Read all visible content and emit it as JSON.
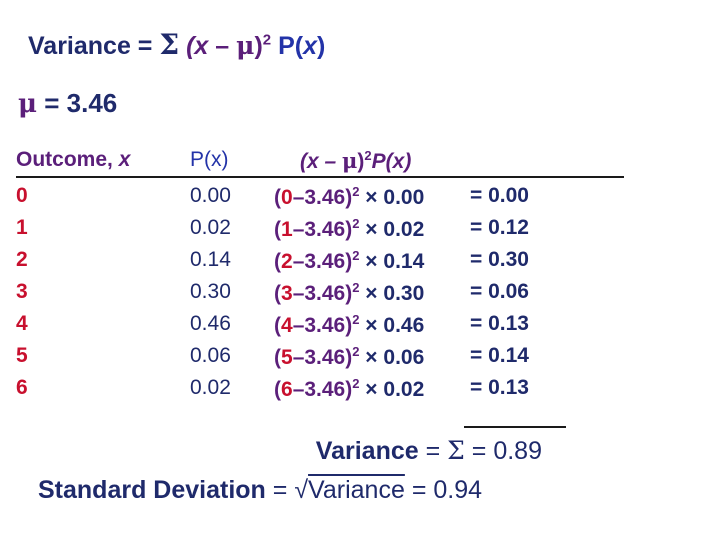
{
  "formula": {
    "prefix": "Variance = ",
    "sigma": "Σ",
    "open": " (x",
    "minus": " – ",
    "mu": "μ",
    "close": ")",
    "exponent": "2",
    "p": " P(",
    "x": "x",
    "p_close": ")"
  },
  "mean": {
    "symbol": "μ",
    "text": " = 3.46"
  },
  "headers": {
    "outcome": "Outcome, ",
    "outcome_var": "x",
    "px": "P(x)",
    "calc_open": "(x – ",
    "calc_mu": "μ",
    "calc_close": ")",
    "calc_exp": "2",
    "calc_tail": "P(x)"
  },
  "rows": [
    {
      "outcome": "0",
      "px": "0.00",
      "calc_x": "0",
      "calc_mid": "–3.46)",
      "calc_tail": " × 0.00",
      "result": "= 0.00"
    },
    {
      "outcome": "1",
      "px": "0.02",
      "calc_x": "1",
      "calc_mid": "–3.46)",
      "calc_tail": " × 0.02",
      "result": "= 0.12"
    },
    {
      "outcome": "2",
      "px": "0.14",
      "calc_x": "2",
      "calc_mid": "–3.46)",
      "calc_tail": " × 0.14",
      "result": "= 0.30"
    },
    {
      "outcome": "3",
      "px": "0.30",
      "calc_x": "3",
      "calc_mid": "–3.46)",
      "calc_tail": " × 0.30",
      "result": "= 0.06"
    },
    {
      "outcome": "4",
      "px": "0.46",
      "calc_x": "4",
      "calc_mid": "–3.46)",
      "calc_tail": " × 0.46",
      "result": "= 0.13"
    },
    {
      "outcome": "5",
      "px": "0.06",
      "calc_x": "5",
      "calc_mid": "–3.46)",
      "calc_tail": " × 0.06",
      "result": "= 0.14"
    },
    {
      "outcome": "6",
      "px": "0.02",
      "calc_x": "6",
      "calc_mid": "–3.46)",
      "calc_tail": " × 0.02",
      "result": "= 0.13"
    }
  ],
  "calc_open": "(",
  "calc_exp": "2",
  "variance": {
    "label": "Variance",
    "eq": " = ",
    "sigma": "Σ",
    "value": " = 0.89"
  },
  "std_dev": {
    "label": "Standard Deviation",
    "eq": " = √",
    "radicand": "Variance",
    "value": " = 0.94"
  }
}
